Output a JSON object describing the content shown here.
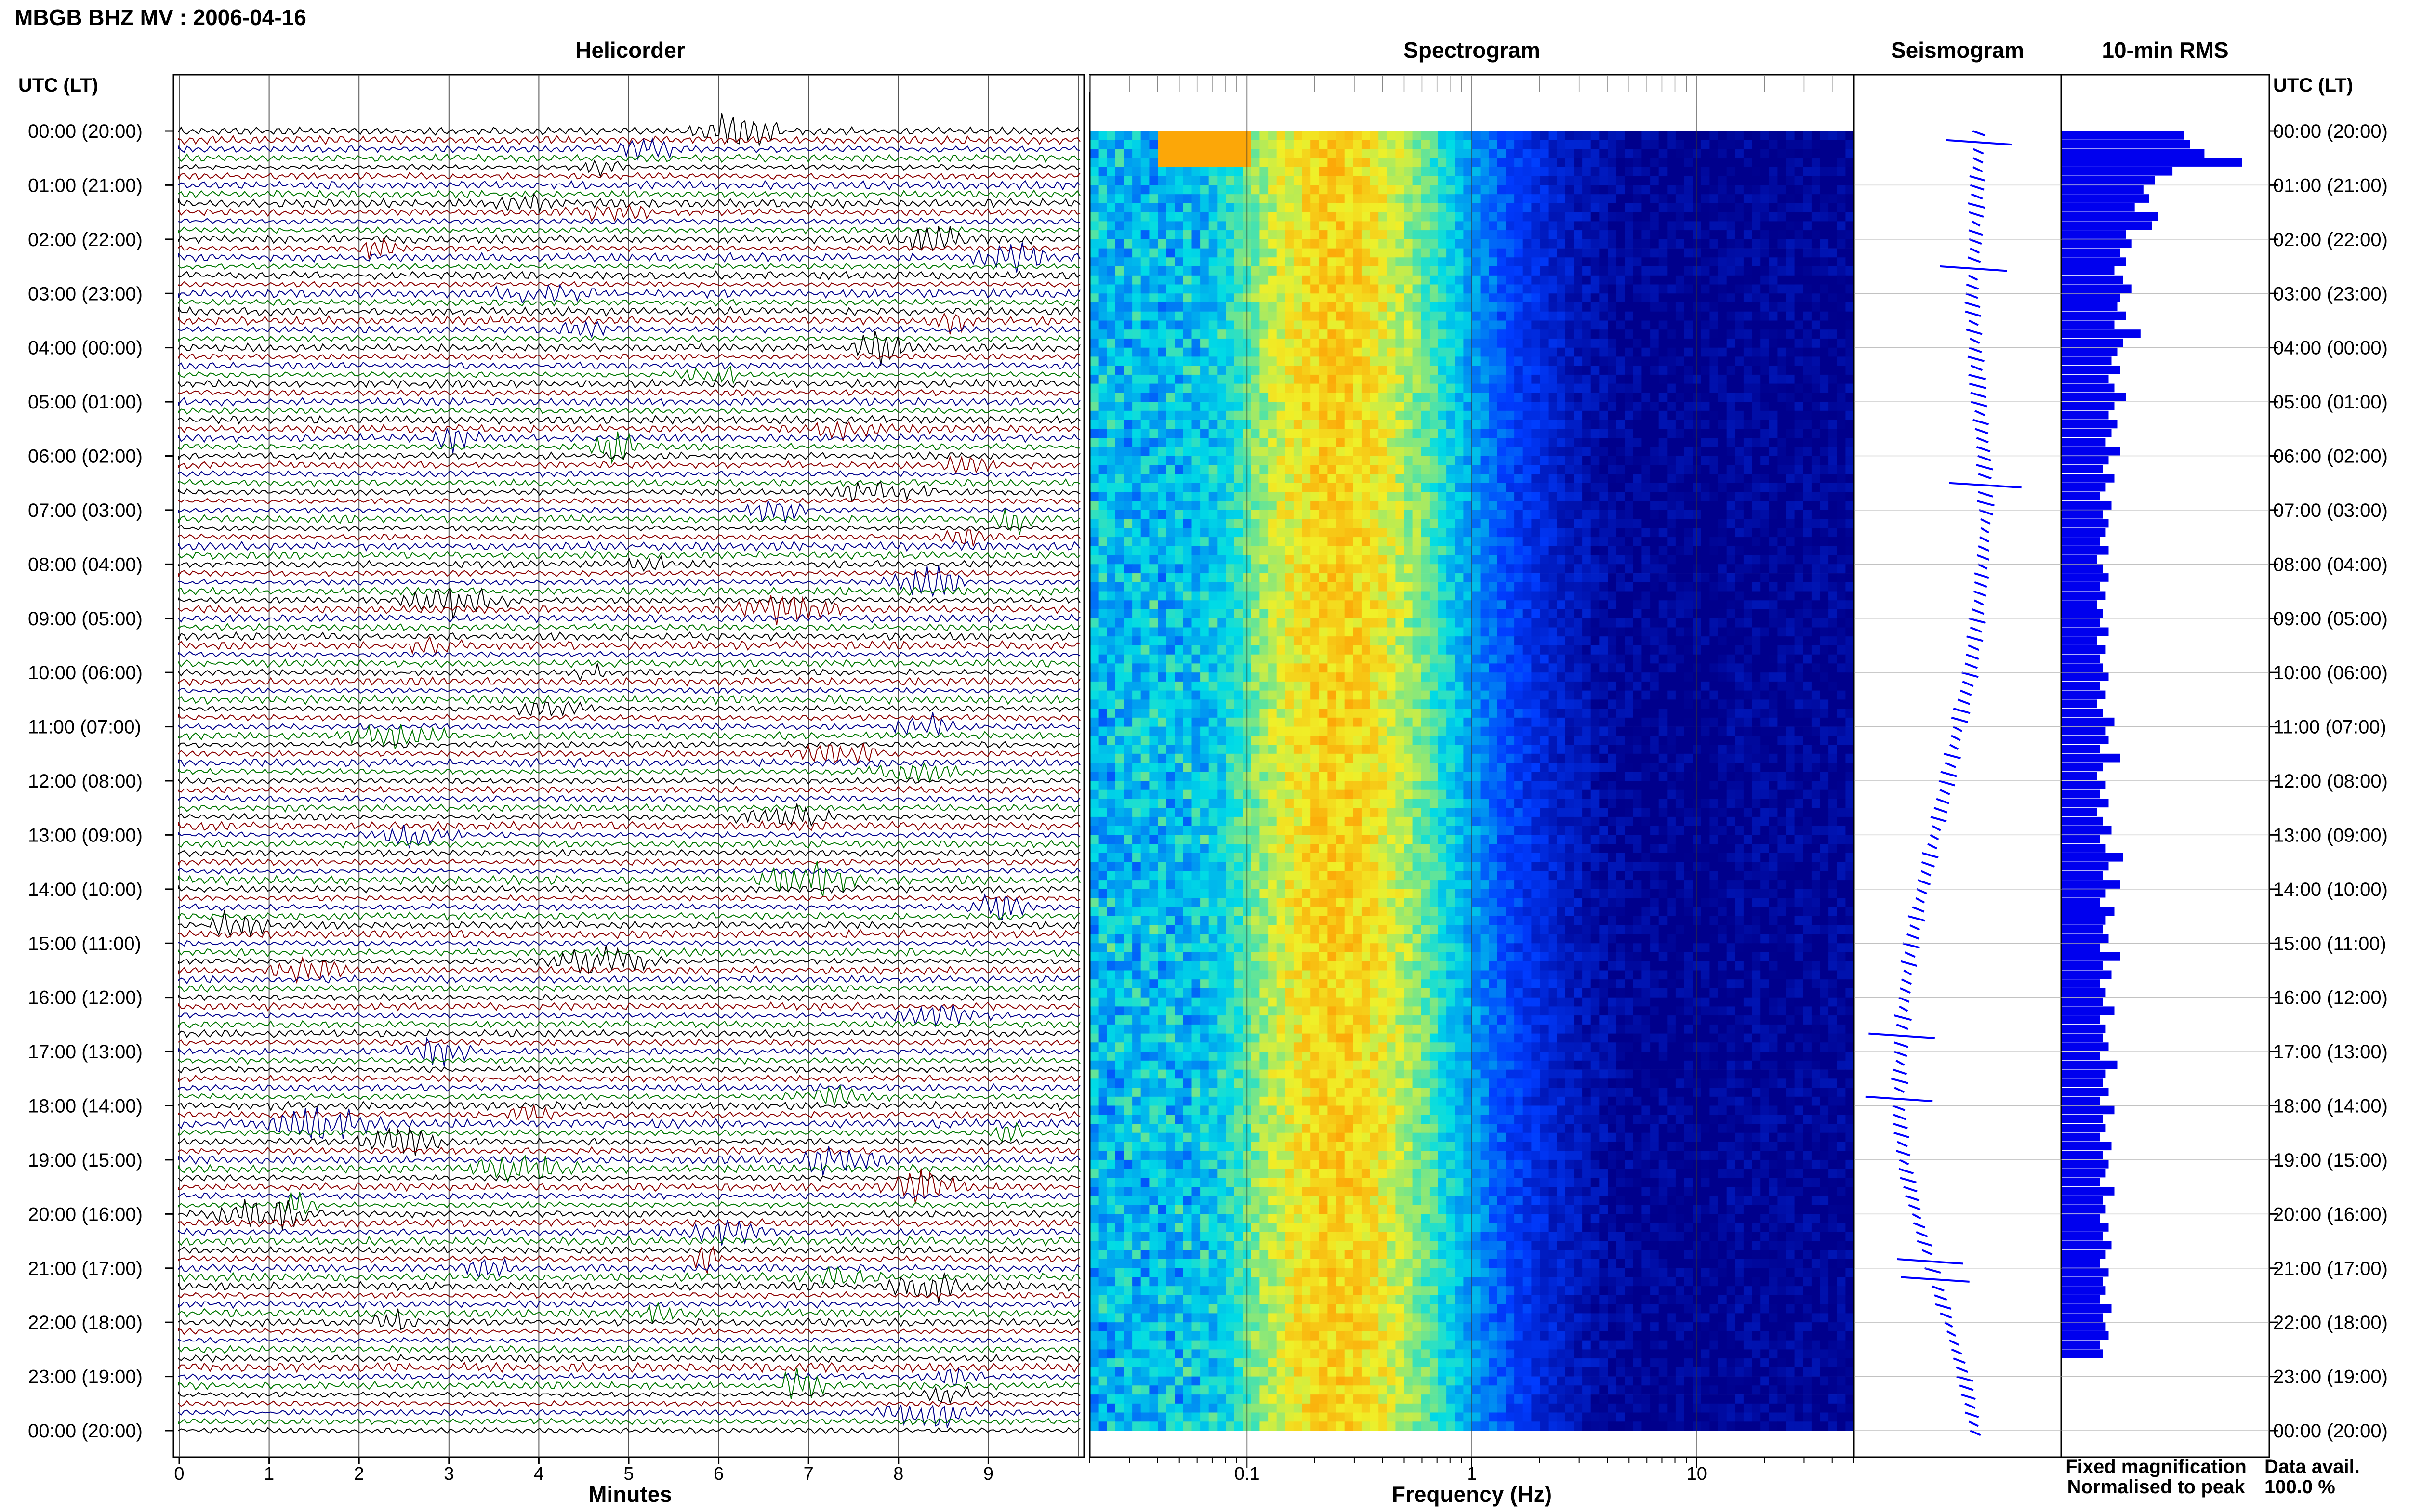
{
  "header": {
    "title": "MBGB BHZ MV : 2006-04-16"
  },
  "panels": {
    "helicorder": "Helicorder",
    "spectrogram": "Spectrogram",
    "seismogram": "Seismogram",
    "rms": "10-min RMS"
  },
  "axes": {
    "time_label_left": "UTC (LT)",
    "time_label_right": "UTC (LT)",
    "minutes_label": "Minutes",
    "frequency_label": "Frequency (Hz)"
  },
  "legend": {
    "fixed": "Fixed magnification",
    "normalised": "Normalised to peak",
    "fixed_color": "#0000ff",
    "normalised_color": "#ff0000"
  },
  "availability": {
    "label": "Data avail.",
    "value": "100.0 %"
  },
  "colors": {
    "trace_colors": [
      "#000000",
      "#8b0000",
      "#00008b",
      "#007700"
    ],
    "rms_bar": "#0000ee",
    "seismogram": "#0000ff"
  },
  "chart_data": {
    "type": "heatmap",
    "title": "MBGB BHZ MV : 2006-04-16",
    "time_ticks": [
      "00:00 (20:00)",
      "01:00 (21:00)",
      "02:00 (22:00)",
      "03:00 (23:00)",
      "04:00 (00:00)",
      "05:00 (01:00)",
      "06:00 (02:00)",
      "07:00 (03:00)",
      "08:00 (04:00)",
      "09:00 (05:00)",
      "10:00 (06:00)",
      "11:00 (07:00)",
      "12:00 (08:00)",
      "13:00 (09:00)",
      "14:00 (10:00)",
      "15:00 (11:00)",
      "16:00 (12:00)",
      "17:00 (13:00)",
      "18:00 (14:00)",
      "19:00 (15:00)",
      "20:00 (16:00)",
      "21:00 (17:00)",
      "22:00 (18:00)",
      "23:00 (19:00)",
      "00:00 (20:00)"
    ],
    "helicorder": {
      "xlabel": "Minutes",
      "x_ticks": [
        "0",
        "1",
        "2",
        "3",
        "4",
        "5",
        "6",
        "7",
        "8",
        "9"
      ],
      "xlim": [
        0,
        10
      ],
      "lines_per_hour": 6
    },
    "spectrogram": {
      "xlabel": "Frequency (Hz)",
      "x_scale": "log",
      "x_ticks": [
        "0.1",
        "1",
        "10"
      ],
      "xlim": [
        0.02,
        50
      ],
      "peak_frequency_hz": 0.25
    },
    "seismogram": {
      "description_offsets": [
        0.62,
        0.61,
        0.6,
        0.58,
        0.6,
        0.62,
        0.65,
        0.66,
        0.64,
        0.61,
        0.57,
        0.5,
        0.44,
        0.37,
        0.3,
        0.24,
        0.2,
        0.18,
        0.17,
        0.2,
        0.27,
        0.36,
        0.45,
        0.54,
        0.6
      ]
    },
    "rms": {
      "xlabel": "",
      "values": [
        0.42,
        0.44,
        0.49,
        0.62,
        0.38,
        0.32,
        0.28,
        0.3,
        0.25,
        0.33,
        0.31,
        0.22,
        0.24,
        0.2,
        0.22,
        0.18,
        0.21,
        0.24,
        0.2,
        0.19,
        0.22,
        0.18,
        0.27,
        0.21,
        0.19,
        0.17,
        0.2,
        0.16,
        0.18,
        0.22,
        0.18,
        0.16,
        0.19,
        0.17,
        0.15,
        0.2,
        0.16,
        0.14,
        0.18,
        0.15,
        0.13,
        0.17,
        0.14,
        0.16,
        0.15,
        0.13,
        0.16,
        0.12,
        0.14,
        0.16,
        0.13,
        0.15,
        0.12,
        0.14,
        0.13,
        0.16,
        0.12,
        0.15,
        0.13,
        0.14,
        0.16,
        0.13,
        0.15,
        0.12,
        0.14,
        0.18,
        0.15,
        0.16,
        0.13,
        0.2,
        0.14,
        0.12,
        0.15,
        0.13,
        0.16,
        0.12,
        0.14,
        0.17,
        0.13,
        0.15,
        0.21,
        0.16,
        0.14,
        0.2,
        0.15,
        0.13,
        0.18,
        0.15,
        0.14,
        0.16,
        0.13,
        0.2,
        0.14,
        0.17,
        0.13,
        0.15,
        0.14,
        0.18,
        0.13,
        0.15,
        0.14,
        0.16,
        0.13,
        0.19,
        0.15,
        0.14,
        0.16,
        0.13,
        0.18,
        0.14,
        0.15,
        0.13,
        0.17,
        0.14,
        0.16,
        0.15,
        0.13,
        0.18,
        0.14,
        0.15,
        0.13,
        0.16,
        0.14,
        0.17,
        0.15,
        0.13,
        0.16,
        0.14,
        0.15,
        0.13,
        0.17,
        0.14,
        0.15,
        0.16,
        0.13,
        0.14
      ],
      "xlim": [
        0,
        0.7
      ]
    }
  }
}
